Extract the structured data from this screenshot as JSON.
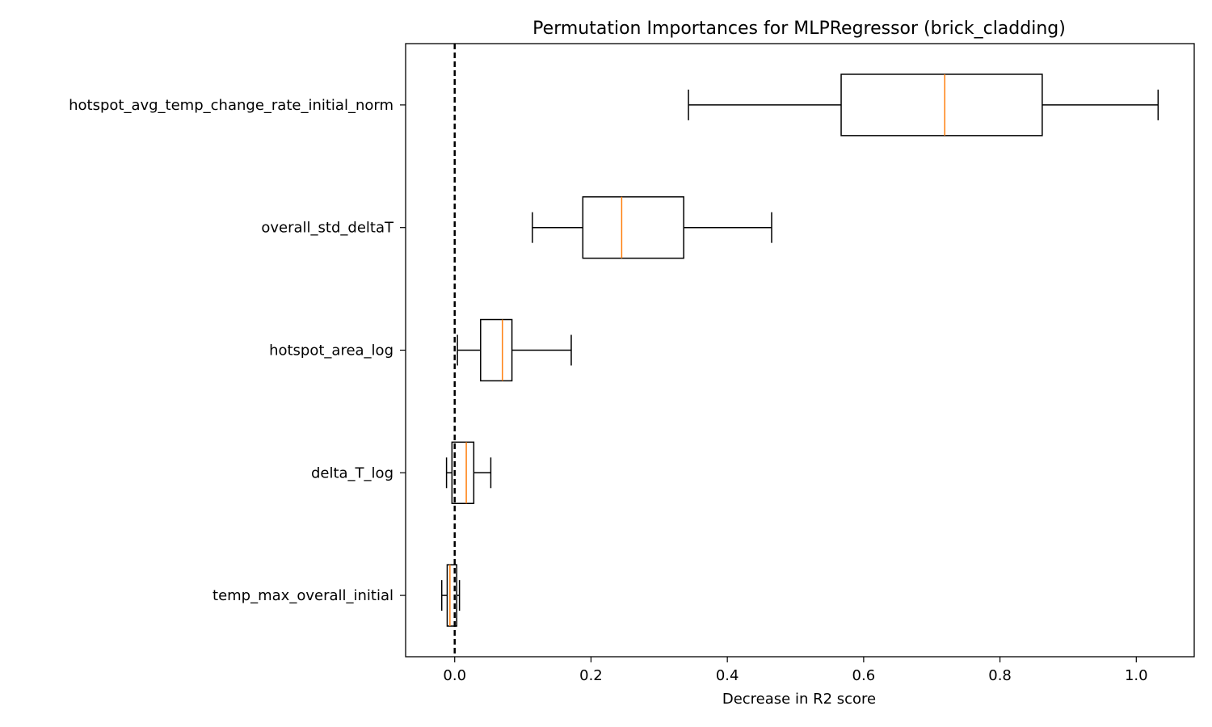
{
  "chart_data": {
    "type": "boxplot",
    "orientation": "horizontal",
    "title": "Permutation Importances for MLPRegressor (brick_cladding)",
    "xlabel": "Decrease in R2 score",
    "ylabel": "",
    "xlim": [
      -0.072,
      1.085
    ],
    "xticks": [
      0.0,
      0.2,
      0.4,
      0.6,
      0.8,
      1.0
    ],
    "xtick_labels": [
      "0.0",
      "0.2",
      "0.4",
      "0.6",
      "0.8",
      "1.0"
    ],
    "reference_line": {
      "x": 0.0,
      "style": "dashed",
      "color": "#000000"
    },
    "grid": false,
    "box_color": "#000000",
    "median_color": "#ff7f0e",
    "categories": [
      "hotspot_avg_temp_change_rate_initial_norm",
      "overall_std_deltaT",
      "hotspot_area_log",
      "delta_T_log",
      "temp_max_overall_initial"
    ],
    "boxes": [
      {
        "label": "hotspot_avg_temp_change_rate_initial_norm",
        "whislo": 0.343,
        "q1": 0.567,
        "med": 0.719,
        "q3": 0.862,
        "whishi": 1.032
      },
      {
        "label": "overall_std_deltaT",
        "whislo": 0.114,
        "q1": 0.188,
        "med": 0.245,
        "q3": 0.336,
        "whishi": 0.465
      },
      {
        "label": "hotspot_area_log",
        "whislo": 0.004,
        "q1": 0.038,
        "med": 0.07,
        "q3": 0.084,
        "whishi": 0.171
      },
      {
        "label": "delta_T_log",
        "whislo": -0.012,
        "q1": -0.004,
        "med": 0.017,
        "q3": 0.028,
        "whishi": 0.053
      },
      {
        "label": "temp_max_overall_initial",
        "whislo": -0.019,
        "q1": -0.011,
        "med": -0.007,
        "q3": 0.003,
        "whishi": 0.007
      }
    ]
  }
}
